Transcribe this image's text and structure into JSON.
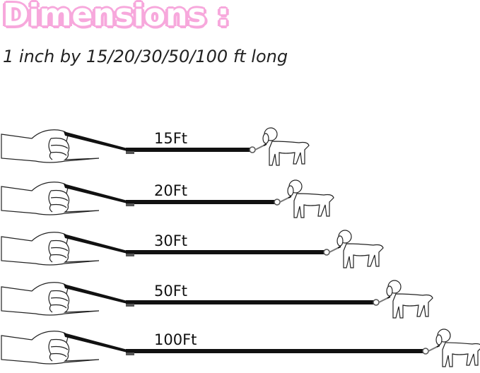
{
  "title": "Dimensions :",
  "subtitle": "1 inch by 15/20/30/50/100 ft long",
  "accent_color": "#f7a8dc",
  "rows": [
    {
      "label": "15Ft",
      "length_ft": 15
    },
    {
      "label": "20Ft",
      "length_ft": 20
    },
    {
      "label": "30Ft",
      "length_ft": 30
    },
    {
      "label": "50Ft",
      "length_ft": 50
    },
    {
      "label": "100Ft",
      "length_ft": 100
    }
  ]
}
